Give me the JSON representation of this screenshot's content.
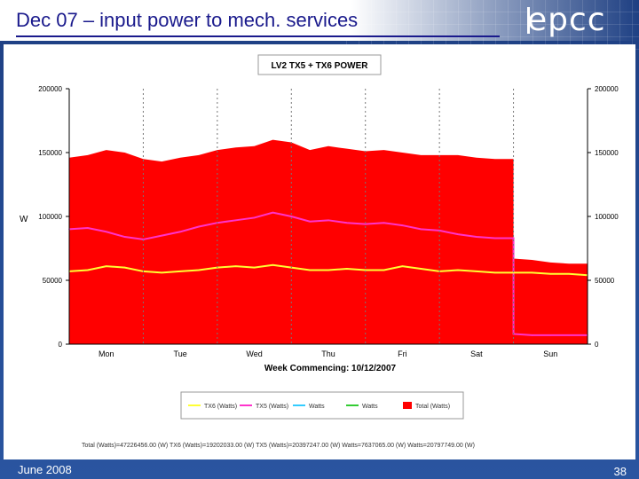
{
  "slide": {
    "title": "Dec 07 – input power to mech. services",
    "logo": "epcc",
    "footer_date": "June 2008",
    "page_number": "38"
  },
  "colors": {
    "total": "#ff0000",
    "tx6": "#ffff33",
    "tx5": "#ff33cc",
    "tx0": "#33ccff",
    "watts": "#33cc33"
  },
  "chart_data": {
    "type": "area",
    "title": "LV2 TX5 + TX6 POWER",
    "xlabel": "Week Commencing: 10/12/2007",
    "ylabel": "W",
    "ylim": [
      0,
      200000
    ],
    "yticks": [
      0,
      50000,
      100000,
      150000,
      200000
    ],
    "ytick_labels": [
      "0",
      "50000",
      "100000",
      "150000",
      "200000"
    ],
    "categories": [
      "Mon",
      "Tue",
      "Wed",
      "Thu",
      "Fri",
      "Sat",
      "Sun"
    ],
    "grid": true,
    "x": [
      0,
      0.25,
      0.5,
      0.75,
      1,
      1.25,
      1.5,
      1.75,
      2,
      2.25,
      2.5,
      2.75,
      3,
      3.25,
      3.5,
      3.75,
      4,
      4.25,
      4.5,
      4.75,
      5,
      5.25,
      5.5,
      5.75,
      6,
      6.25,
      6.5,
      6.75,
      7
    ],
    "series": [
      {
        "name": "Total (Watts)",
        "color_key": "total",
        "fill": true,
        "values": [
          146000,
          148000,
          152000,
          150000,
          145000,
          143000,
          146000,
          148000,
          152000,
          154000,
          155000,
          160000,
          158000,
          152000,
          155000,
          153000,
          151000,
          152000,
          150000,
          148000,
          148000,
          148000,
          146000,
          145000,
          67000,
          66000,
          64000,
          63000,
          63000
        ]
      },
      {
        "name": "TX5 (Watts)",
        "color_key": "tx5",
        "fill": false,
        "values": [
          90000,
          91000,
          88000,
          84000,
          82000,
          85000,
          88000,
          92000,
          95000,
          97000,
          99000,
          103000,
          100000,
          96000,
          97000,
          95000,
          94000,
          95000,
          93000,
          90000,
          89000,
          86000,
          84000,
          83000,
          8000,
          7000,
          7000,
          7000,
          7000
        ]
      },
      {
        "name": "TX6 (Watts)",
        "color_key": "tx6",
        "fill": false,
        "values": [
          57000,
          58000,
          61000,
          60000,
          57000,
          56000,
          57000,
          58000,
          60000,
          61000,
          60000,
          62000,
          60000,
          58000,
          58000,
          59000,
          58000,
          58000,
          61000,
          59000,
          57000,
          58000,
          57000,
          56000,
          56000,
          56000,
          55000,
          55000,
          54000
        ]
      }
    ],
    "legend": {
      "placement": "bottom",
      "entries": [
        "TX6 (Watts)",
        "TX5 (Watts)",
        "Watts",
        "Watts",
        "Total (Watts)"
      ]
    },
    "stats_line": "Total (Watts)=47226456.00 (W)   TX6 (Watts)=19202033.00 (W)   TX5 (Watts)=20397247.00 (W)   Watts=7637065.00 (W)   Watts=20797749.00 (W)"
  }
}
